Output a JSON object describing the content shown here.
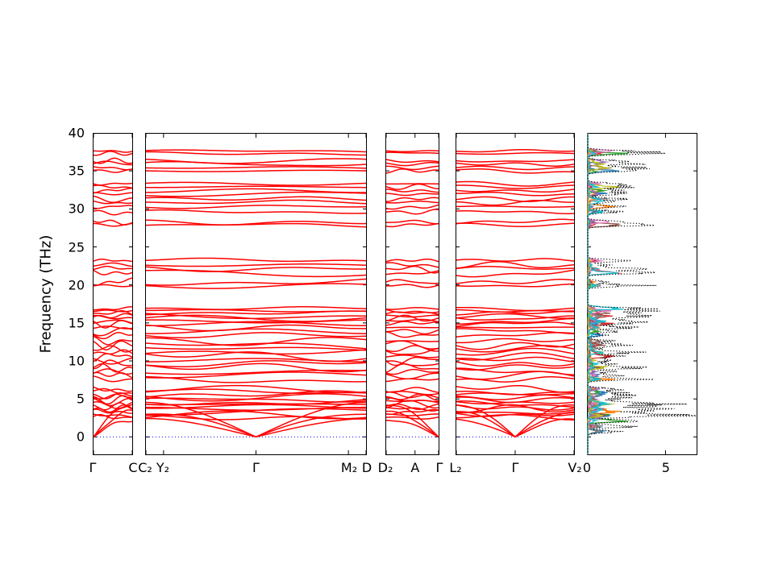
{
  "figure": {
    "ylabel": "Frequency (THz)"
  },
  "chart_data": {
    "type": "line",
    "title": "",
    "ylabel": "Frequency (THz)",
    "ylim": [
      -2.4,
      40
    ],
    "yticks": [
      0,
      5,
      10,
      15,
      20,
      25,
      30,
      35,
      40
    ],
    "frequency_unit": "THz",
    "band_color": "#ff0000",
    "zero_line_color": "#0000ff",
    "panels": [
      {
        "name": "segment-1",
        "gamma": 0,
        "ticks": [
          {
            "label": "Γ",
            "pos": 0
          },
          {
            "label": "C",
            "pos": 1
          }
        ]
      },
      {
        "name": "segment-2",
        "gamma": 0.5,
        "ticks": [
          {
            "label": "C₂",
            "pos": 0
          },
          {
            "label": "Y₂",
            "pos": 0.08
          },
          {
            "label": "Γ",
            "pos": 0.5
          },
          {
            "label": "M₂",
            "pos": 0.92
          },
          {
            "label": "D",
            "pos": 1
          }
        ]
      },
      {
        "name": "segment-3",
        "gamma": 1,
        "ticks": [
          {
            "label": "D₂",
            "pos": 0
          },
          {
            "label": "A",
            "pos": 0.55
          },
          {
            "label": "Γ",
            "pos": 1
          }
        ]
      },
      {
        "name": "segment-4",
        "gamma": 0.5,
        "ticks": [
          {
            "label": "L₂",
            "pos": 0
          },
          {
            "label": "Γ",
            "pos": 0.5
          },
          {
            "label": "V₂",
            "pos": 1
          }
        ]
      }
    ],
    "acoustic_bands": [
      {
        "vmax": 2.3
      },
      {
        "vmax": 3.3
      },
      {
        "vmax": 4.4
      }
    ],
    "optic_bands": [
      [
        2.6,
        0.45
      ],
      [
        2.9,
        0.55
      ],
      [
        3.3,
        0.6
      ],
      [
        3.7,
        0.55
      ],
      [
        4.0,
        0.5
      ],
      [
        4.3,
        0.55
      ],
      [
        4.6,
        0.5
      ],
      [
        4.9,
        0.55
      ],
      [
        5.2,
        0.5
      ],
      [
        5.5,
        0.55
      ],
      [
        5.9,
        0.6
      ],
      [
        6.3,
        0.6
      ],
      [
        7.6,
        0.6
      ],
      [
        8.1,
        0.65
      ],
      [
        8.6,
        0.6
      ],
      [
        9.1,
        0.65
      ],
      [
        9.6,
        0.6
      ],
      [
        10.1,
        0.7
      ],
      [
        10.6,
        0.75
      ],
      [
        11.1,
        0.7
      ],
      [
        11.6,
        0.6
      ],
      [
        12.1,
        0.65
      ],
      [
        12.6,
        0.6
      ],
      [
        13.4,
        0.5
      ],
      [
        13.9,
        0.55
      ],
      [
        14.4,
        0.5
      ],
      [
        14.9,
        0.55
      ],
      [
        15.2,
        0.4
      ],
      [
        15.6,
        0.45
      ],
      [
        15.9,
        0.4
      ],
      [
        16.3,
        0.35
      ],
      [
        16.6,
        0.3
      ],
      [
        16.9,
        0.3
      ],
      [
        19.9,
        0.4
      ],
      [
        20.4,
        0.5
      ],
      [
        21.6,
        0.55
      ],
      [
        22.1,
        0.5
      ],
      [
        22.6,
        0.45
      ],
      [
        23.2,
        0.35
      ],
      [
        27.9,
        0.35
      ],
      [
        28.3,
        0.45
      ],
      [
        29.6,
        0.45
      ],
      [
        30.3,
        0.35
      ],
      [
        30.9,
        0.4
      ],
      [
        31.3,
        0.45
      ],
      [
        32.0,
        0.35
      ],
      [
        32.4,
        0.3
      ],
      [
        32.9,
        0.35
      ],
      [
        33.3,
        0.3
      ],
      [
        35.0,
        0.35
      ],
      [
        35.4,
        0.3
      ],
      [
        35.9,
        0.45
      ],
      [
        36.3,
        0.35
      ],
      [
        37.3,
        0.35
      ],
      [
        37.6,
        0.25
      ]
    ],
    "dos": {
      "xlim": [
        0,
        7
      ],
      "xticks": [
        {
          "label": "0",
          "pos": 0
        },
        {
          "label": "5",
          "pos": 0.7143
        }
      ],
      "total_color": "#000000",
      "total_style": "dotted",
      "partial_colors": [
        "#1f77b4",
        "#ff7f0e",
        "#2ca02c",
        "#d62728",
        "#9467bd",
        "#8c564b",
        "#e377c2",
        "#7f7f7f",
        "#bcbd22",
        "#17becf"
      ]
    }
  }
}
